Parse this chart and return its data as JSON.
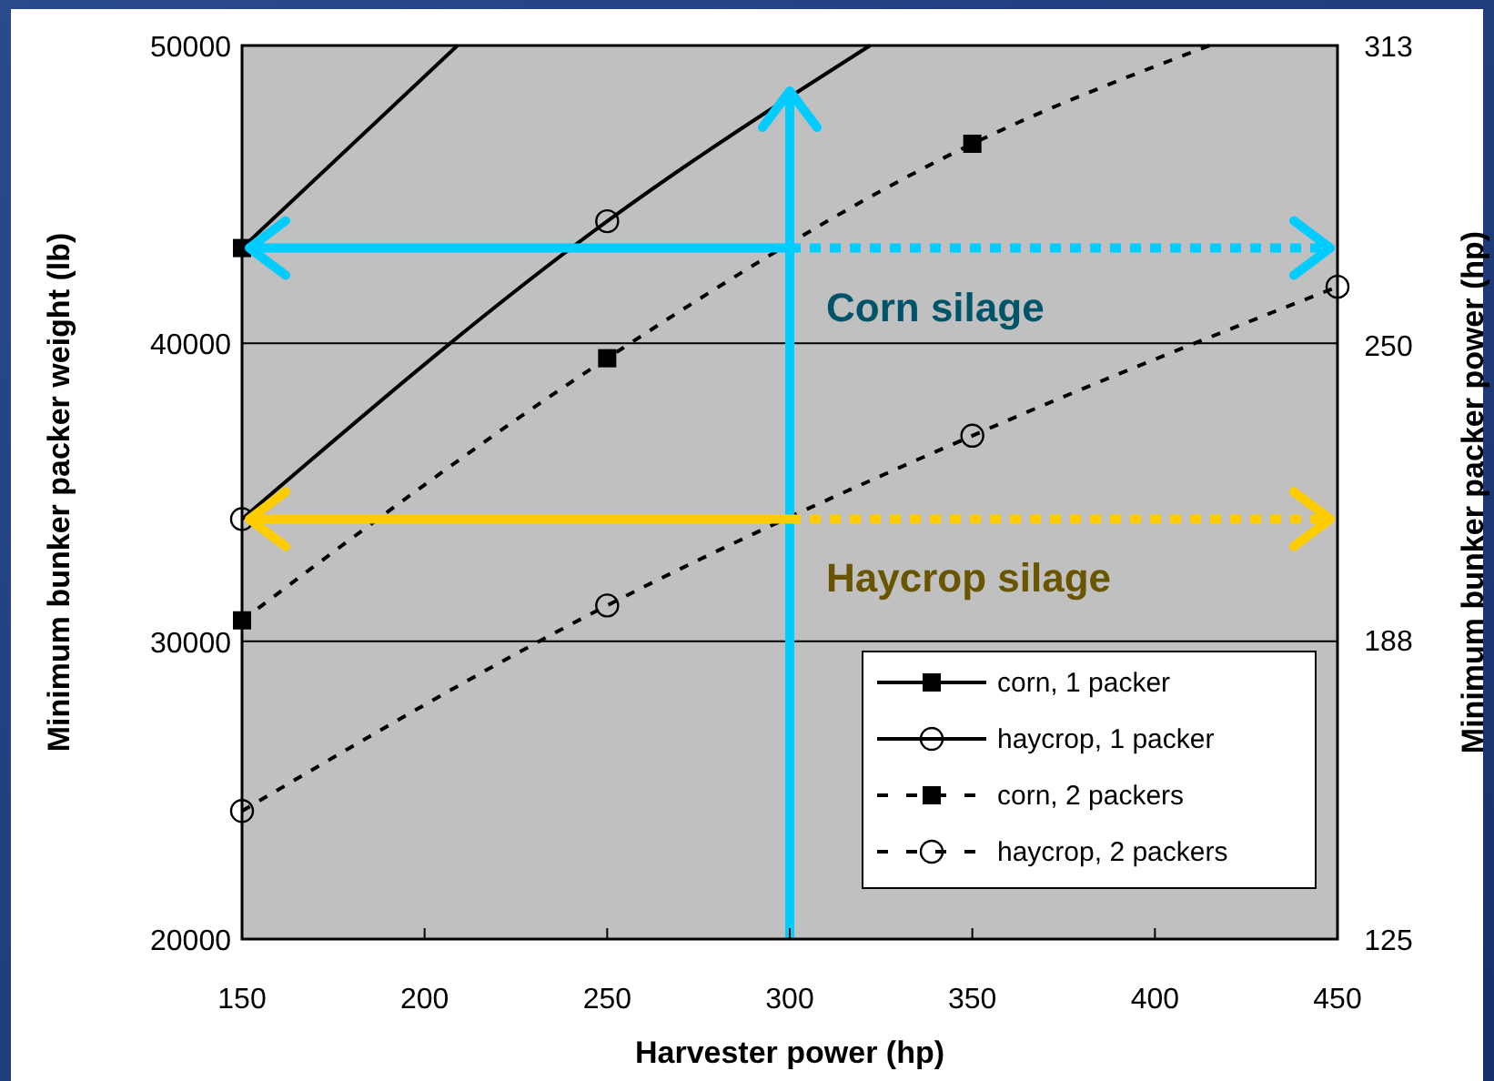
{
  "chart_data": {
    "type": "line",
    "xlabel": "Harvester power (hp)",
    "ylabel": "Minimum bunker packer weight (lb)",
    "y2label": "Minimum bunker packer power (hp)",
    "xlim": [
      150,
      450
    ],
    "xticks": [
      150,
      200,
      250,
      300,
      350,
      400,
      450
    ],
    "ylim": [
      20000,
      50000
    ],
    "yticks": [
      20000,
      30000,
      40000,
      50000
    ],
    "y2lim": [
      125,
      313
    ],
    "y2ticks": [
      125,
      188,
      250,
      313
    ],
    "grid": "y",
    "legend": "bottom right",
    "ref_lines": [
      {
        "axis": "x",
        "value": 300,
        "color": "#00ccff"
      },
      {
        "axis": "y",
        "value": 43200,
        "label": "Corn silage",
        "color": "#00ccff"
      },
      {
        "axis": "y",
        "value": 34100,
        "label": "Haycrop silage",
        "color": "#ffcc00"
      }
    ],
    "series": [
      {
        "name": "corn, 1 packer",
        "color": "#000000",
        "marker": "square",
        "line_style": "solid",
        "x": [
          150,
          209
        ],
        "values": [
          43200,
          50000
        ]
      },
      {
        "name": "haycrop, 1 packer",
        "color": "#000000",
        "marker": "circle",
        "line_style": "solid",
        "x": [
          150,
          250,
          322
        ],
        "values": [
          34100,
          44100,
          50000
        ]
      },
      {
        "name": "corn, 2 packers",
        "color": "#000000",
        "marker": "square",
        "line_style": "dashed",
        "x": [
          150,
          250,
          350,
          415
        ],
        "values": [
          30700,
          39500,
          46700,
          50000
        ]
      },
      {
        "name": "haycrop, 2 packers",
        "color": "#000000",
        "marker": "circle",
        "line_style": "dashed",
        "x": [
          150,
          250,
          350,
          450
        ],
        "values": [
          24300,
          31200,
          36900,
          41900
        ]
      }
    ]
  }
}
